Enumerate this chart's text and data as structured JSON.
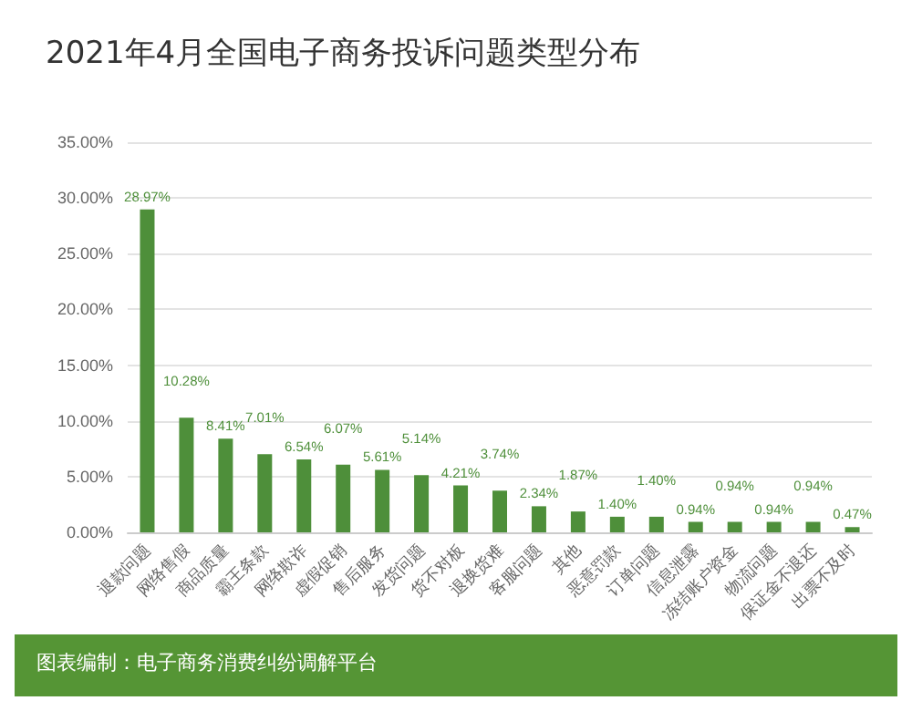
{
  "chart_data": {
    "type": "bar",
    "title": "2021年4月全国电子商务投诉问题类型分布",
    "categories": [
      "退款问题",
      "网络售假",
      "商品质量",
      "霸王条款",
      "网络欺诈",
      "虚假促销",
      "售后服务",
      "发货问题",
      "货不对板",
      "退换货难",
      "客服问题",
      "其他",
      "恶意罚款",
      "订单问题",
      "信息泄露",
      "冻结账户资金",
      "物流问题",
      "保证金不退还",
      "出票不及时"
    ],
    "values": [
      28.97,
      10.28,
      8.41,
      7.01,
      6.54,
      6.07,
      5.61,
      5.14,
      4.21,
      3.74,
      2.34,
      1.87,
      1.4,
      1.4,
      0.94,
      0.94,
      0.94,
      0.94,
      0.47
    ],
    "color": "#4e8f3a",
    "ylim": [
      0,
      35
    ],
    "yticks": [
      {
        "value": 0,
        "label": "0.00%"
      },
      {
        "value": 5,
        "label": "5.00%"
      },
      {
        "value": 10,
        "label": "10.00%"
      },
      {
        "value": 15,
        "label": "15.00%"
      },
      {
        "value": 20,
        "label": "20.00%"
      },
      {
        "value": 25,
        "label": "25.00%"
      },
      {
        "value": 30,
        "label": "30.00%"
      },
      {
        "value": 35,
        "label": "35.00%"
      }
    ],
    "grid": "y",
    "value_labels": [
      "28.97%",
      "10.28%",
      "8.41%",
      "7.01%",
      "6.54%",
      "6.07%",
      "5.61%",
      "5.14%",
      "4.21%",
      "3.74%",
      "2.34%",
      "1.87%",
      "1.40%",
      "1.40%",
      "0.94%",
      "0.94%",
      "0.94%",
      "0.94%",
      "0.47%"
    ],
    "annotations": [
      "图表编制：电子商务消费纠纷调解平台"
    ]
  }
}
